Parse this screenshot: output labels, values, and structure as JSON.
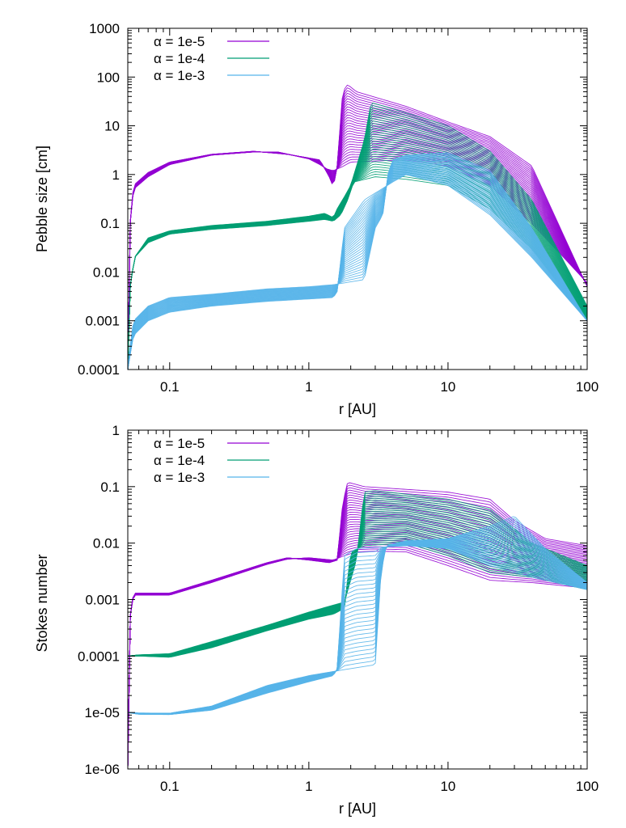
{
  "colors": {
    "alpha_1e_5": "#9400d3",
    "alpha_1e_4": "#009e73",
    "alpha_1e_3": "#56b4e9"
  },
  "chart_data": [
    {
      "type": "line",
      "xlabel": "r [AU]",
      "ylabel": "Pebble size [cm]",
      "xscale": "log",
      "yscale": "log",
      "xlim": [
        0.05,
        100
      ],
      "ylim": [
        0.0001,
        1000
      ],
      "x_ticks": [
        "0.1",
        "1",
        "10",
        "100"
      ],
      "y_ticks": [
        "0.0001",
        "0.001",
        "0.01",
        "0.1",
        "1",
        "10",
        "100",
        "1000"
      ],
      "grid": false,
      "legend_position": "top-left",
      "curves_per_series": 30,
      "series": [
        {
          "name": "α = 1e-5",
          "color": "#9400d3",
          "first_curve": [
            [
              0.05,
              0.0001
            ],
            [
              0.052,
              0.1
            ],
            [
              0.055,
              0.6
            ],
            [
              0.07,
              1.1
            ],
            [
              0.1,
              1.8
            ],
            [
              0.2,
              2.6
            ],
            [
              0.4,
              3.0
            ],
            [
              0.7,
              2.6
            ],
            [
              1.2,
              2.0
            ],
            [
              1.4,
              0.9
            ],
            [
              1.5,
              0.55
            ],
            [
              1.6,
              1.5
            ],
            [
              1.75,
              50
            ],
            [
              1.9,
              70
            ],
            [
              2.2,
              50
            ],
            [
              5,
              25
            ],
            [
              10,
              12
            ],
            [
              20,
              6
            ],
            [
              40,
              1.5
            ],
            [
              100,
              0.005
            ]
          ],
          "last_curve": [
            [
              0.05,
              0.0001
            ],
            [
              0.052,
              0.1
            ],
            [
              0.055,
              0.5
            ],
            [
              0.07,
              0.9
            ],
            [
              0.1,
              1.6
            ],
            [
              0.2,
              2.5
            ],
            [
              0.4,
              2.9
            ],
            [
              0.6,
              2.9
            ],
            [
              1.0,
              2.1
            ],
            [
              1.2,
              1.6
            ],
            [
              1.35,
              1.3
            ],
            [
              1.5,
              1.2
            ],
            [
              1.7,
              1.4
            ],
            [
              2.0,
              1.8
            ],
            [
              3,
              1.9
            ],
            [
              5,
              2.0
            ],
            [
              10,
              1.5
            ],
            [
              20,
              0.6
            ],
            [
              40,
              0.1
            ],
            [
              100,
              0.006
            ]
          ]
        },
        {
          "name": "α = 1e-4",
          "color": "#009e73",
          "first_curve": [
            [
              0.05,
              0.0001
            ],
            [
              0.052,
              0.005
            ],
            [
              0.056,
              0.02
            ],
            [
              0.07,
              0.05
            ],
            [
              0.1,
              0.07
            ],
            [
              0.2,
              0.09
            ],
            [
              0.5,
              0.11
            ],
            [
              1.0,
              0.14
            ],
            [
              1.3,
              0.16
            ],
            [
              1.5,
              0.13
            ],
            [
              1.6,
              0.2
            ],
            [
              1.8,
              0.35
            ],
            [
              2.0,
              0.6
            ],
            [
              2.5,
              5
            ],
            [
              2.8,
              30
            ],
            [
              3.5,
              25
            ],
            [
              10,
              10
            ],
            [
              20,
              3
            ],
            [
              40,
              0.3
            ],
            [
              100,
              0.002
            ]
          ],
          "last_curve": [
            [
              0.05,
              0.0001
            ],
            [
              0.052,
              0.005
            ],
            [
              0.056,
              0.02
            ],
            [
              0.07,
              0.04
            ],
            [
              0.1,
              0.06
            ],
            [
              0.2,
              0.075
            ],
            [
              0.5,
              0.09
            ],
            [
              1.0,
              0.11
            ],
            [
              1.3,
              0.12
            ],
            [
              1.5,
              0.11
            ],
            [
              1.7,
              0.15
            ],
            [
              1.9,
              0.3
            ],
            [
              2.1,
              0.7
            ],
            [
              3.0,
              0.9
            ],
            [
              5,
              0.8
            ],
            [
              10,
              0.6
            ],
            [
              20,
              0.2
            ],
            [
              40,
              0.03
            ],
            [
              100,
              0.001
            ]
          ]
        },
        {
          "name": "α = 1e-3",
          "color": "#56b4e9",
          "first_curve": [
            [
              0.05,
              0.0001
            ],
            [
              0.052,
              0.0003
            ],
            [
              0.055,
              0.001
            ],
            [
              0.07,
              0.002
            ],
            [
              0.1,
              0.003
            ],
            [
              0.2,
              0.0035
            ],
            [
              0.5,
              0.0045
            ],
            [
              1.0,
              0.005
            ],
            [
              1.5,
              0.0055
            ],
            [
              2.5,
              0.007
            ],
            [
              3.0,
              0.08
            ],
            [
              3.4,
              0.15
            ],
            [
              3.7,
              1.0
            ],
            [
              4,
              2.0
            ],
            [
              5,
              2.5
            ],
            [
              10,
              2.8
            ],
            [
              20,
              1.2
            ],
            [
              40,
              0.08
            ],
            [
              100,
              0.001
            ]
          ],
          "last_curve": [
            [
              0.05,
              0.0001
            ],
            [
              0.052,
              0.0002
            ],
            [
              0.055,
              0.0005
            ],
            [
              0.07,
              0.001
            ],
            [
              0.1,
              0.0015
            ],
            [
              0.2,
              0.002
            ],
            [
              0.5,
              0.0025
            ],
            [
              1.0,
              0.0028
            ],
            [
              1.5,
              0.003
            ],
            [
              1.6,
              0.004
            ],
            [
              1.8,
              0.08
            ],
            [
              2.5,
              0.3
            ],
            [
              4,
              0.7
            ],
            [
              5,
              1.0
            ],
            [
              10,
              0.6
            ],
            [
              20,
              0.15
            ],
            [
              40,
              0.02
            ],
            [
              100,
              0.001
            ]
          ]
        }
      ]
    },
    {
      "type": "line",
      "xlabel": "r [AU]",
      "ylabel": "Stokes number",
      "xscale": "log",
      "yscale": "log",
      "xlim": [
        0.05,
        100
      ],
      "ylim": [
        1e-06,
        1
      ],
      "x_ticks": [
        "0.1",
        "1",
        "10",
        "100"
      ],
      "y_ticks": [
        "1e-06",
        "1e-05",
        "0.0001",
        "0.001",
        "0.01",
        "0.1",
        "1"
      ],
      "grid": false,
      "legend_position": "top-left",
      "curves_per_series": 30,
      "series": [
        {
          "name": "α = 1e-5",
          "color": "#9400d3",
          "first_curve": [
            [
              0.05,
              1e-06
            ],
            [
              0.052,
              0.0005
            ],
            [
              0.055,
              0.0013
            ],
            [
              0.1,
              0.0013
            ],
            [
              0.2,
              0.0022
            ],
            [
              0.5,
              0.0045
            ],
            [
              0.7,
              0.0055
            ],
            [
              1.0,
              0.005
            ],
            [
              1.4,
              0.0045
            ],
            [
              1.6,
              0.005
            ],
            [
              1.75,
              0.05
            ],
            [
              1.9,
              0.12
            ],
            [
              2.5,
              0.1
            ],
            [
              10,
              0.08
            ],
            [
              20,
              0.06
            ],
            [
              30,
              0.025
            ],
            [
              50,
              0.012
            ],
            [
              100,
              0.009
            ]
          ],
          "last_curve": [
            [
              0.05,
              1e-06
            ],
            [
              0.052,
              0.0005
            ],
            [
              0.055,
              0.0012
            ],
            [
              0.1,
              0.0012
            ],
            [
              0.2,
              0.002
            ],
            [
              0.5,
              0.0042
            ],
            [
              0.7,
              0.0052
            ],
            [
              1.0,
              0.0055
            ],
            [
              1.5,
              0.005
            ],
            [
              1.8,
              0.006
            ],
            [
              2.2,
              0.007
            ],
            [
              3,
              0.0072
            ],
            [
              5,
              0.007
            ],
            [
              10,
              0.004
            ],
            [
              20,
              0.0022
            ],
            [
              40,
              0.002
            ],
            [
              100,
              0.0016
            ]
          ]
        },
        {
          "name": "α = 1e-4",
          "color": "#009e73",
          "first_curve": [
            [
              0.05,
              0.0001
            ],
            [
              0.06,
              0.000105
            ],
            [
              0.1,
              0.00011
            ],
            [
              0.2,
              0.00018
            ],
            [
              0.5,
              0.00035
            ],
            [
              1.0,
              0.0006
            ],
            [
              1.5,
              0.0008
            ],
            [
              1.8,
              0.0009
            ],
            [
              2.2,
              0.005
            ],
            [
              2.5,
              0.08
            ],
            [
              3,
              0.085
            ],
            [
              10,
              0.06
            ],
            [
              20,
              0.04
            ],
            [
              40,
              0.01
            ],
            [
              100,
              0.004
            ]
          ],
          "last_curve": [
            [
              0.05,
              0.0001
            ],
            [
              0.06,
              0.0001
            ],
            [
              0.1,
              9.5e-05
            ],
            [
              0.2,
              0.00014
            ],
            [
              0.5,
              0.00028
            ],
            [
              1.0,
              0.00045
            ],
            [
              1.5,
              0.00055
            ],
            [
              1.8,
              0.0007
            ],
            [
              2.0,
              0.007
            ],
            [
              2.5,
              0.009
            ],
            [
              5,
              0.01
            ],
            [
              10,
              0.006
            ],
            [
              20,
              0.003
            ],
            [
              40,
              0.0025
            ],
            [
              100,
              0.0015
            ]
          ]
        },
        {
          "name": "α = 1e-3",
          "color": "#56b4e9",
          "first_curve": [
            [
              0.05,
              1e-05
            ],
            [
              0.06,
              9.8e-06
            ],
            [
              0.1,
              9.7e-06
            ],
            [
              0.2,
              1.3e-05
            ],
            [
              0.5,
              3e-05
            ],
            [
              1.0,
              4.5e-05
            ],
            [
              2,
              6e-05
            ],
            [
              3,
              7e-05
            ],
            [
              3.3,
              0.003
            ],
            [
              3.6,
              0.009
            ],
            [
              5,
              0.011
            ],
            [
              10,
              0.012
            ],
            [
              20,
              0.02
            ],
            [
              30,
              0.03
            ],
            [
              50,
              0.008
            ],
            [
              100,
              0.002
            ]
          ],
          "last_curve": [
            [
              0.05,
              1e-05
            ],
            [
              0.06,
              9.3e-06
            ],
            [
              0.1,
              9.2e-06
            ],
            [
              0.2,
              1.1e-05
            ],
            [
              0.5,
              2.2e-05
            ],
            [
              1.0,
              3.5e-05
            ],
            [
              1.5,
              4.5e-05
            ],
            [
              1.6,
              6e-05
            ],
            [
              1.8,
              0.006
            ],
            [
              2.2,
              0.008
            ],
            [
              5,
              0.009
            ],
            [
              10,
              0.008
            ],
            [
              20,
              0.004
            ],
            [
              40,
              0.0025
            ],
            [
              100,
              0.0015
            ]
          ]
        }
      ]
    }
  ]
}
